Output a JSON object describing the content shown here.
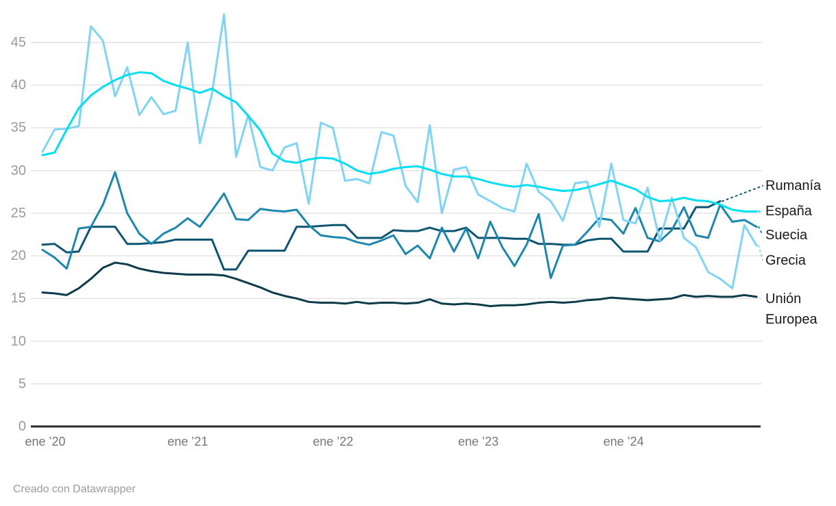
{
  "chart_data": {
    "type": "line",
    "title": "",
    "xlabel": "",
    "ylabel": "",
    "ylim": [
      0,
      48.5
    ],
    "grid": "horizontal",
    "legend_position": "right-edge-direct-labels",
    "y_ticks": [
      0,
      5,
      10,
      15,
      20,
      25,
      30,
      35,
      40,
      45
    ],
    "x_tick_labels": [
      "ene ’20",
      "ene ’21",
      "ene ’22",
      "ene ’23",
      "ene ’24"
    ],
    "x": [
      "2020-01",
      "2020-02",
      "2020-03",
      "2020-04",
      "2020-05",
      "2020-06",
      "2020-07",
      "2020-08",
      "2020-09",
      "2020-10",
      "2020-11",
      "2020-12",
      "2021-01",
      "2021-02",
      "2021-03",
      "2021-04",
      "2021-05",
      "2021-06",
      "2021-07",
      "2021-08",
      "2021-09",
      "2021-10",
      "2021-11",
      "2021-12",
      "2022-01",
      "2022-02",
      "2022-03",
      "2022-04",
      "2022-05",
      "2022-06",
      "2022-07",
      "2022-08",
      "2022-09",
      "2022-10",
      "2022-11",
      "2022-12",
      "2023-01",
      "2023-02",
      "2023-03",
      "2023-04",
      "2023-05",
      "2023-06",
      "2023-07",
      "2023-08",
      "2023-09",
      "2023-10",
      "2023-11",
      "2023-12",
      "2024-01",
      "2024-02",
      "2024-03",
      "2024-04",
      "2024-05",
      "2024-06",
      "2024-07",
      "2024-08",
      "2024-09",
      "2024-10",
      "2024-11",
      "2024-12"
    ],
    "series": [
      {
        "name": "España",
        "color": "#00dff2",
        "values": [
          31.8,
          32.1,
          34.8,
          37.3,
          38.8,
          39.8,
          40.6,
          41.2,
          41.5,
          41.4,
          40.5,
          40.0,
          39.6,
          39.1,
          39.6,
          38.7,
          38.0,
          36.4,
          34.7,
          32.0,
          31.1,
          30.9,
          31.3,
          31.5,
          31.4,
          30.8,
          30.0,
          29.6,
          29.8,
          30.2,
          30.4,
          30.5,
          30.1,
          29.6,
          29.3,
          29.3,
          29.0,
          28.6,
          28.3,
          28.1,
          28.3,
          28.1,
          27.8,
          27.6,
          27.7,
          28.0,
          28.4,
          28.8,
          28.3,
          27.8,
          26.9,
          26.4,
          26.5,
          26.8,
          26.5,
          26.4,
          26.0,
          25.4,
          25.2,
          25.2
        ]
      },
      {
        "name": "Grecia",
        "color": "#7fd4f6",
        "values": [
          32.2,
          34.8,
          34.9,
          35.2,
          46.9,
          45.2,
          38.7,
          42.1,
          36.5,
          38.6,
          36.6,
          37.0,
          45.0,
          33.2,
          39.0,
          48.3,
          31.6,
          36.5,
          30.4,
          30.0,
          32.7,
          33.2,
          26.1,
          35.6,
          35.0,
          28.8,
          29.0,
          28.5,
          34.5,
          34.1,
          28.2,
          26.3,
          35.3,
          25.0,
          30.1,
          30.4,
          27.2,
          26.4,
          25.6,
          25.2,
          30.8,
          27.5,
          26.4,
          24.1,
          28.5,
          28.7,
          23.4,
          30.8,
          24.2,
          23.8,
          28.0,
          21.8,
          26.8,
          22.1,
          21.0,
          18.1,
          17.3,
          16.2,
          23.6,
          21.2
        ]
      },
      {
        "name": "Suecia",
        "color": "#1b87ae",
        "values": [
          20.7,
          19.8,
          18.5,
          23.2,
          23.4,
          26.0,
          29.8,
          25.0,
          22.6,
          21.4,
          22.6,
          23.3,
          24.4,
          23.4,
          25.3,
          27.3,
          24.3,
          24.2,
          25.5,
          25.3,
          25.2,
          25.4,
          23.6,
          22.4,
          22.2,
          22.1,
          21.6,
          21.3,
          21.8,
          22.4,
          20.2,
          21.2,
          19.7,
          23.3,
          20.5,
          23.2,
          19.7,
          24.0,
          21.0,
          18.8,
          21.3,
          24.9,
          17.4,
          21.2,
          21.3,
          22.8,
          24.4,
          24.2,
          22.6,
          25.6,
          22.1,
          21.7,
          23.0,
          25.7,
          22.4,
          22.1,
          26.0,
          24.0,
          24.2,
          23.4
        ]
      },
      {
        "name": "Rumanía",
        "color": "#0d5472",
        "values": [
          21.3,
          21.4,
          20.4,
          20.5,
          23.4,
          23.4,
          23.4,
          21.4,
          21.4,
          21.5,
          21.6,
          21.9,
          21.9,
          21.9,
          21.9,
          18.4,
          18.4,
          20.6,
          20.6,
          20.6,
          20.6,
          23.4,
          23.4,
          23.5,
          23.6,
          23.6,
          22.1,
          22.1,
          22.1,
          23.0,
          22.9,
          22.9,
          23.3,
          22.9,
          22.9,
          23.3,
          22.1,
          22.1,
          22.1,
          22.0,
          22.0,
          21.4,
          21.4,
          21.3,
          21.3,
          21.8,
          22.0,
          22.0,
          20.5,
          20.5,
          20.5,
          23.2,
          23.2,
          23.2,
          25.7,
          25.7,
          26.4,
          null,
          null,
          null
        ]
      },
      {
        "name": "Unión Europea",
        "color": "#0c3b4c",
        "values": [
          15.7,
          15.6,
          15.4,
          16.2,
          17.3,
          18.6,
          19.2,
          19.0,
          18.5,
          18.2,
          18.0,
          17.9,
          17.8,
          17.8,
          17.8,
          17.7,
          17.3,
          16.8,
          16.3,
          15.7,
          15.3,
          15.0,
          14.6,
          14.5,
          14.5,
          14.4,
          14.6,
          14.4,
          14.5,
          14.5,
          14.4,
          14.5,
          14.9,
          14.4,
          14.3,
          14.4,
          14.3,
          14.1,
          14.2,
          14.2,
          14.3,
          14.5,
          14.6,
          14.5,
          14.6,
          14.8,
          14.9,
          15.1,
          15.0,
          14.9,
          14.8,
          14.9,
          15.0,
          15.4,
          15.2,
          15.3,
          15.2,
          15.2,
          15.4,
          15.2
        ]
      }
    ]
  },
  "axes": {
    "y": {
      "tick_labels": [
        "0",
        "5",
        "10",
        "15",
        "20",
        "25",
        "30",
        "35",
        "40",
        "45"
      ]
    },
    "x": {
      "tick_labels": [
        "ene ’20",
        "ene ’21",
        "ene ’22",
        "ene ’23",
        "ene ’24"
      ]
    }
  },
  "colors": {
    "gridline": "#e1e1e1",
    "axis_line": "#2a2a2a",
    "y_tick_text": "#9b9b9b",
    "x_tick_text": "#767676",
    "label_text": "#191919",
    "credit_text": "#9c9c9c"
  },
  "footer": {
    "credit": "Creado con Datawrapper"
  }
}
